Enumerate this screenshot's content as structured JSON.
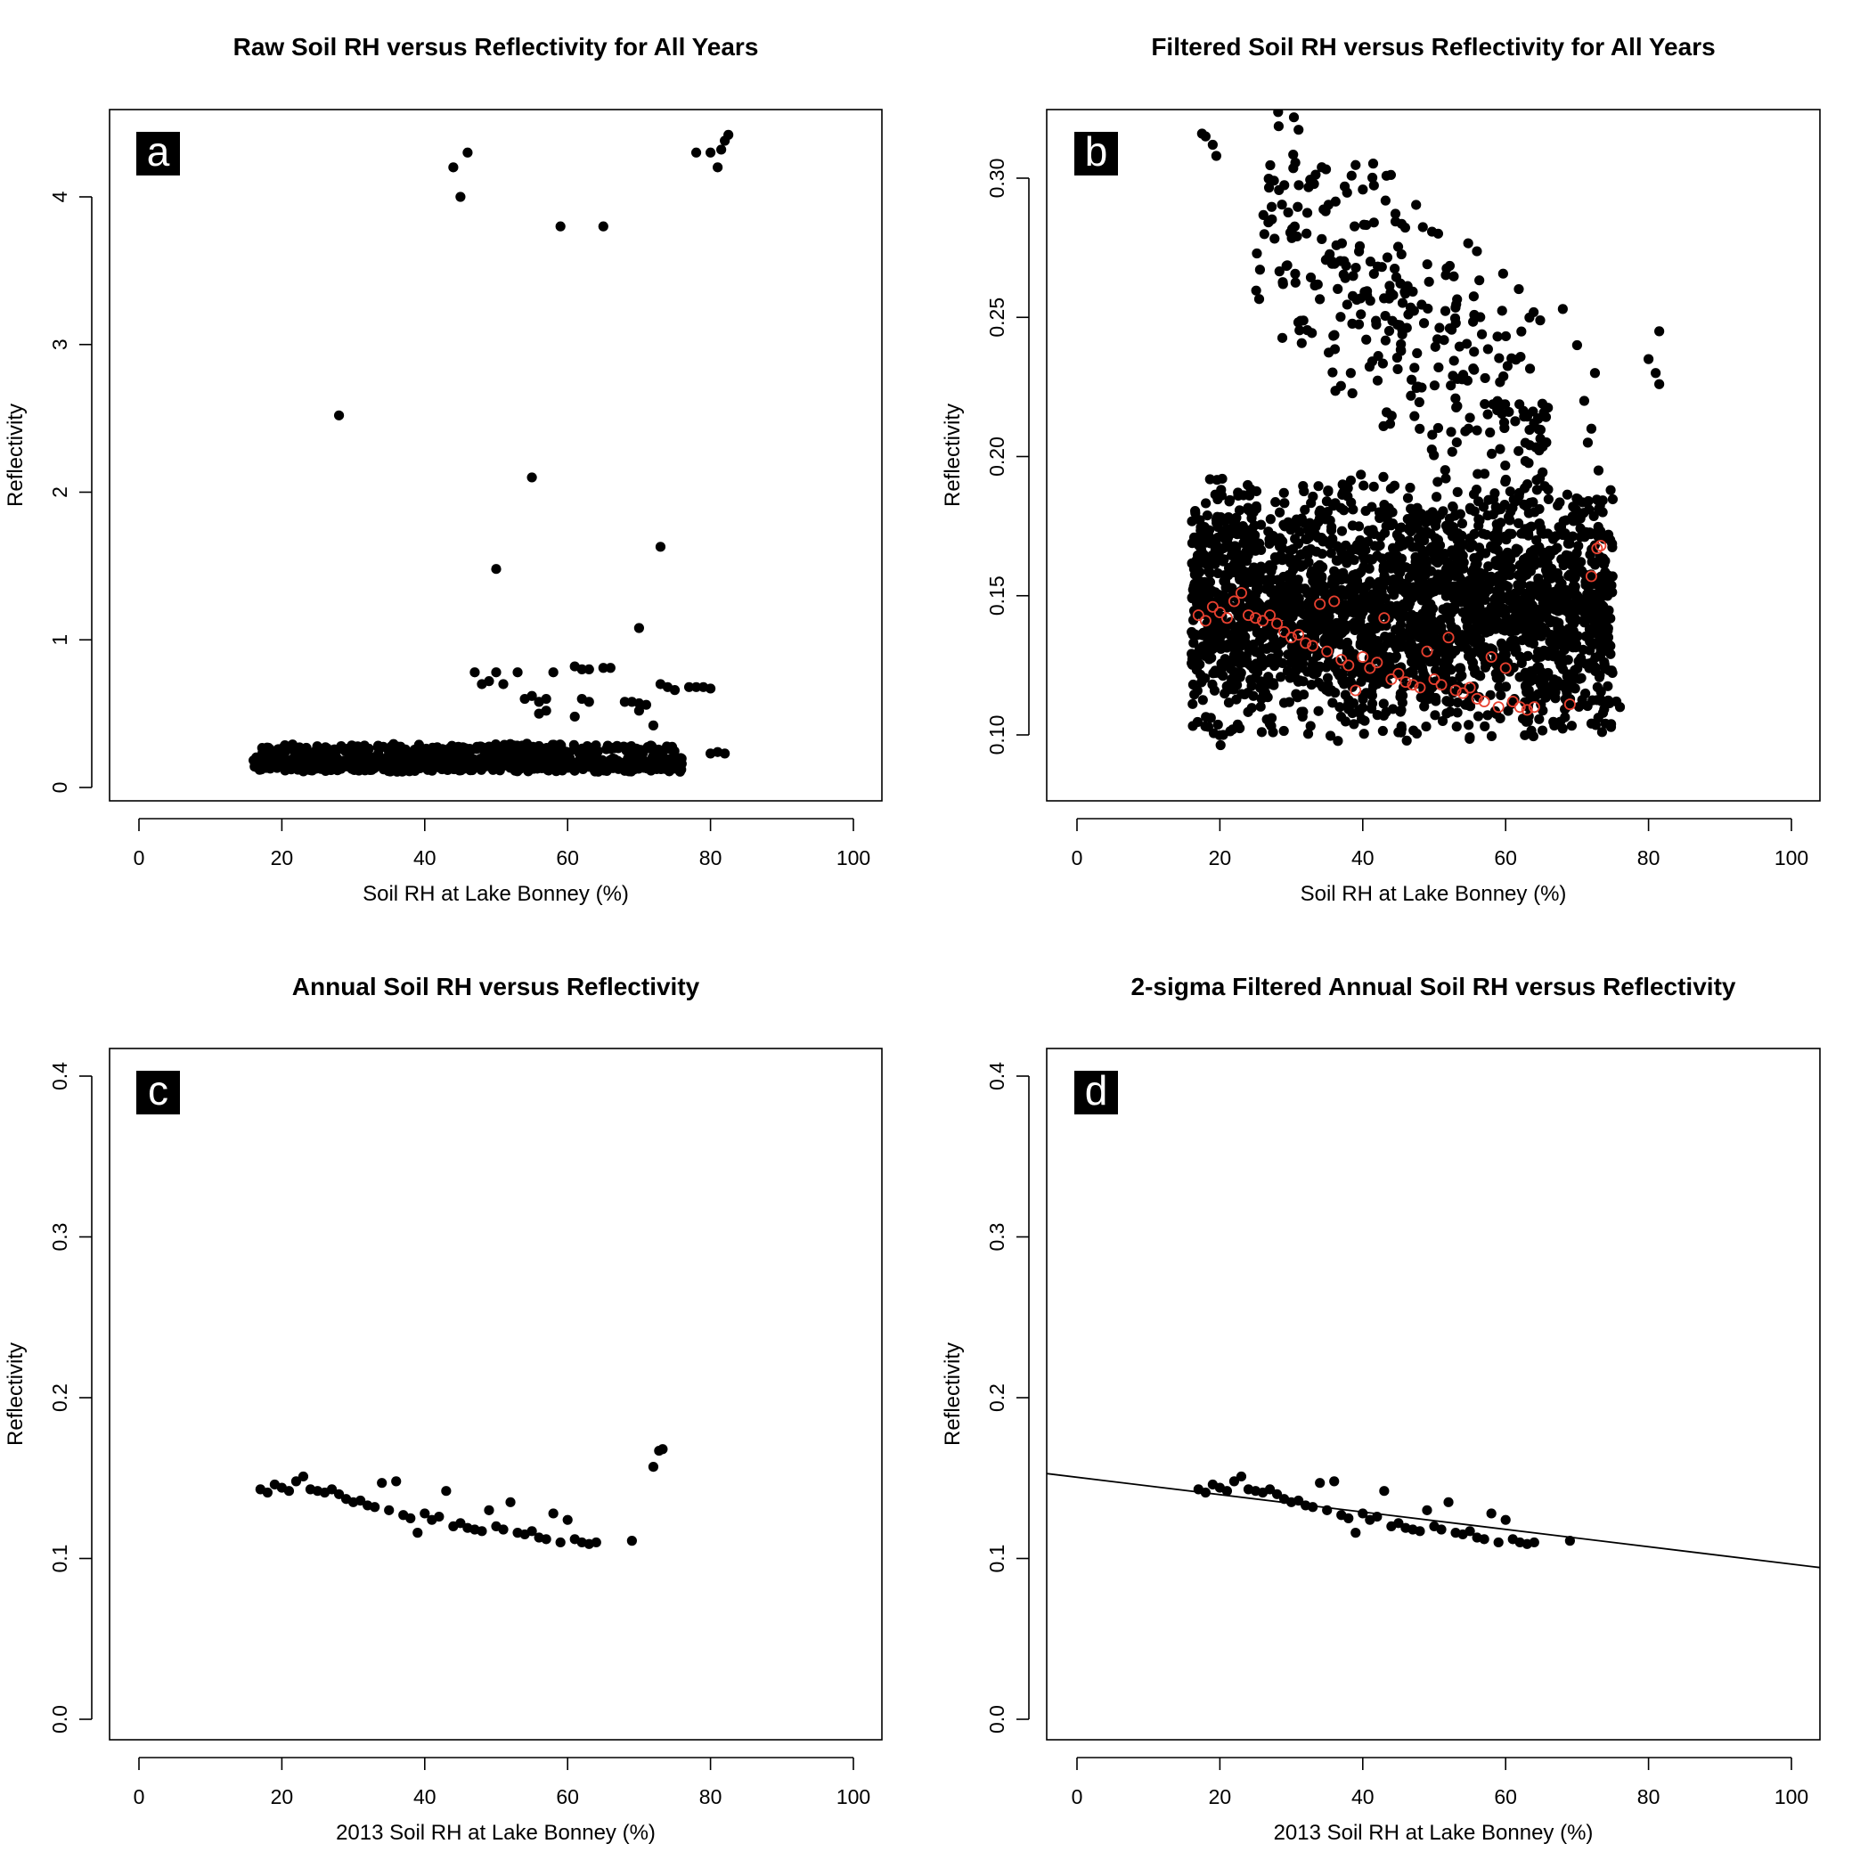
{
  "colors": {
    "points": "#000000",
    "highlight": "#e8402f",
    "frame": "#000000",
    "letter_bg": "#000000",
    "letter_fg": "#ffffff"
  },
  "chart_data": [
    {
      "panel": "a",
      "type": "scatter",
      "title": "Raw Soil RH versus Reflectivity for All Years",
      "xlabel": "Soil RH at Lake Bonney (%)",
      "ylabel": "Reflectivity",
      "xlim": [
        0,
        100
      ],
      "ylim": [
        0,
        4.4
      ],
      "xticks": [
        "0",
        "20",
        "40",
        "60",
        "80",
        "100"
      ],
      "yticks": [
        "0",
        "1",
        "2",
        "3",
        "4"
      ],
      "grid": false,
      "cloud": [
        {
          "x": [
            16,
            76
          ],
          "y": [
            0.1,
            0.22
          ],
          "n": 900
        },
        {
          "x": [
            17,
            75
          ],
          "y": [
            0.22,
            0.3
          ],
          "n": 250
        }
      ],
      "points": [
        [
          28,
          2.52
        ],
        [
          44,
          4.2
        ],
        [
          45,
          4.0
        ],
        [
          46,
          4.3
        ],
        [
          55,
          2.1
        ],
        [
          50,
          1.48
        ],
        [
          59,
          3.8
        ],
        [
          65,
          3.8
        ],
        [
          73,
          1.63
        ],
        [
          70,
          1.08
        ],
        [
          72,
          0.42
        ],
        [
          47,
          0.78
        ],
        [
          48,
          0.7
        ],
        [
          49,
          0.72
        ],
        [
          50,
          0.78
        ],
        [
          51,
          0.7
        ],
        [
          53,
          0.78
        ],
        [
          54,
          0.6
        ],
        [
          55,
          0.62
        ],
        [
          56,
          0.58
        ],
        [
          57,
          0.6
        ],
        [
          58,
          0.78
        ],
        [
          57,
          0.52
        ],
        [
          56,
          0.5
        ],
        [
          61,
          0.48
        ],
        [
          62,
          0.6
        ],
        [
          63,
          0.58
        ],
        [
          61,
          0.82
        ],
        [
          62,
          0.8
        ],
        [
          63,
          0.8
        ],
        [
          65,
          0.81
        ],
        [
          66,
          0.81
        ],
        [
          68,
          0.58
        ],
        [
          69,
          0.58
        ],
        [
          70,
          0.57
        ],
        [
          71,
          0.56
        ],
        [
          70,
          0.52
        ],
        [
          73,
          0.7
        ],
        [
          74,
          0.68
        ],
        [
          75,
          0.66
        ],
        [
          77,
          0.68
        ],
        [
          78,
          0.68
        ],
        [
          79,
          0.68
        ],
        [
          80,
          0.67
        ],
        [
          80,
          0.23
        ],
        [
          81,
          0.24
        ],
        [
          82,
          0.23
        ],
        [
          78,
          4.3
        ],
        [
          80,
          4.3
        ],
        [
          81,
          4.2
        ],
        [
          81.5,
          4.32
        ],
        [
          82,
          4.38
        ],
        [
          82.5,
          4.42
        ]
      ]
    },
    {
      "panel": "b",
      "type": "scatter",
      "title": "Filtered Soil RH versus Reflectivity for All Years",
      "xlabel": "Soil RH at Lake Bonney (%)",
      "ylabel": "Reflectivity",
      "xlim": [
        0,
        100
      ],
      "ylim": [
        0.085,
        0.32
      ],
      "xticks": [
        "0",
        "20",
        "40",
        "60",
        "80",
        "100"
      ],
      "yticks": [
        "0.10",
        "0.15",
        "0.20",
        "0.25",
        "0.30"
      ],
      "grid": false,
      "cloud": [
        {
          "x": [
            16,
            75
          ],
          "y": [
            0.095,
            0.195
          ],
          "n": 2600
        },
        {
          "x": [
            25,
            66
          ],
          "y": [
            0.195,
            0.3
          ],
          "n": 320,
          "trend": -0.0021
        }
      ],
      "points": [
        [
          18,
          0.315
        ],
        [
          19,
          0.312
        ],
        [
          19.5,
          0.308
        ],
        [
          17.5,
          0.316
        ],
        [
          68,
          0.253
        ],
        [
          70,
          0.24
        ],
        [
          71,
          0.22
        ],
        [
          72,
          0.21
        ],
        [
          73,
          0.195
        ],
        [
          71.5,
          0.205
        ],
        [
          72.5,
          0.23
        ],
        [
          80,
          0.235
        ],
        [
          81,
          0.23
        ],
        [
          81.5,
          0.245
        ],
        [
          81.5,
          0.226
        ],
        [
          76,
          0.11
        ],
        [
          75.5,
          0.112
        ],
        [
          74,
          0.14
        ],
        [
          73.5,
          0.143
        ]
      ],
      "highlighted": [
        [
          17,
          0.143
        ],
        [
          18,
          0.141
        ],
        [
          19,
          0.146
        ],
        [
          20,
          0.144
        ],
        [
          21,
          0.142
        ],
        [
          22,
          0.148
        ],
        [
          23,
          0.151
        ],
        [
          24,
          0.143
        ],
        [
          25,
          0.142
        ],
        [
          26,
          0.141
        ],
        [
          27,
          0.143
        ],
        [
          28,
          0.14
        ],
        [
          29,
          0.137
        ],
        [
          30,
          0.135
        ],
        [
          31,
          0.136
        ],
        [
          32,
          0.133
        ],
        [
          33,
          0.132
        ],
        [
          34,
          0.147
        ],
        [
          35,
          0.13
        ],
        [
          36,
          0.148
        ],
        [
          37,
          0.127
        ],
        [
          38,
          0.125
        ],
        [
          39,
          0.116
        ],
        [
          40,
          0.128
        ],
        [
          41,
          0.124
        ],
        [
          42,
          0.126
        ],
        [
          43,
          0.142
        ],
        [
          44,
          0.12
        ],
        [
          45,
          0.122
        ],
        [
          46,
          0.119
        ],
        [
          47,
          0.118
        ],
        [
          48,
          0.117
        ],
        [
          49,
          0.13
        ],
        [
          50,
          0.12
        ],
        [
          51,
          0.118
        ],
        [
          52,
          0.135
        ],
        [
          53,
          0.116
        ],
        [
          54,
          0.115
        ],
        [
          55,
          0.117
        ],
        [
          56,
          0.113
        ],
        [
          57,
          0.112
        ],
        [
          58,
          0.128
        ],
        [
          59,
          0.11
        ],
        [
          60,
          0.124
        ],
        [
          61,
          0.112
        ],
        [
          62,
          0.11
        ],
        [
          63,
          0.109
        ],
        [
          64,
          0.11
        ],
        [
          69,
          0.111
        ],
        [
          72,
          0.157
        ],
        [
          72.8,
          0.167
        ],
        [
          73.3,
          0.168
        ]
      ]
    },
    {
      "panel": "c",
      "type": "scatter",
      "title": "Annual Soil RH versus Reflectivity",
      "xlabel": "2013 Soil RH at Lake Bonney (%)",
      "ylabel": "Reflectivity",
      "xlim": [
        0,
        100
      ],
      "ylim": [
        0,
        0.4
      ],
      "xticks": [
        "0",
        "20",
        "40",
        "60",
        "80",
        "100"
      ],
      "yticks": [
        "0.0",
        "0.1",
        "0.2",
        "0.3",
        "0.4"
      ],
      "grid": false,
      "points": [
        [
          17,
          0.143
        ],
        [
          18,
          0.141
        ],
        [
          19,
          0.146
        ],
        [
          20,
          0.144
        ],
        [
          21,
          0.142
        ],
        [
          22,
          0.148
        ],
        [
          23,
          0.151
        ],
        [
          24,
          0.143
        ],
        [
          25,
          0.142
        ],
        [
          26,
          0.141
        ],
        [
          27,
          0.143
        ],
        [
          28,
          0.14
        ],
        [
          29,
          0.137
        ],
        [
          30,
          0.135
        ],
        [
          31,
          0.136
        ],
        [
          32,
          0.133
        ],
        [
          33,
          0.132
        ],
        [
          34,
          0.147
        ],
        [
          35,
          0.13
        ],
        [
          36,
          0.148
        ],
        [
          37,
          0.127
        ],
        [
          38,
          0.125
        ],
        [
          39,
          0.116
        ],
        [
          40,
          0.128
        ],
        [
          41,
          0.124
        ],
        [
          42,
          0.126
        ],
        [
          43,
          0.142
        ],
        [
          44,
          0.12
        ],
        [
          45,
          0.122
        ],
        [
          46,
          0.119
        ],
        [
          47,
          0.118
        ],
        [
          48,
          0.117
        ],
        [
          49,
          0.13
        ],
        [
          50,
          0.12
        ],
        [
          51,
          0.118
        ],
        [
          52,
          0.135
        ],
        [
          53,
          0.116
        ],
        [
          54,
          0.115
        ],
        [
          55,
          0.117
        ],
        [
          56,
          0.113
        ],
        [
          57,
          0.112
        ],
        [
          58,
          0.128
        ],
        [
          59,
          0.11
        ],
        [
          60,
          0.124
        ],
        [
          61,
          0.112
        ],
        [
          62,
          0.11
        ],
        [
          63,
          0.109
        ],
        [
          64,
          0.11
        ],
        [
          69,
          0.111
        ],
        [
          72,
          0.157
        ],
        [
          72.8,
          0.167
        ],
        [
          73.3,
          0.168
        ]
      ]
    },
    {
      "panel": "d",
      "type": "scatter",
      "title": "2-sigma Filtered Annual Soil RH versus Reflectivity",
      "xlabel": "2013 Soil RH at Lake Bonney (%)",
      "ylabel": "Reflectivity",
      "xlim": [
        0,
        100
      ],
      "ylim": [
        0,
        0.4
      ],
      "xticks": [
        "0",
        "20",
        "40",
        "60",
        "80",
        "100"
      ],
      "yticks": [
        "0.0",
        "0.1",
        "0.2",
        "0.3",
        "0.4"
      ],
      "grid": false,
      "fit_line": {
        "intercept": 0.1505,
        "slope": -0.00054
      },
      "points": [
        [
          17,
          0.143
        ],
        [
          18,
          0.141
        ],
        [
          19,
          0.146
        ],
        [
          20,
          0.144
        ],
        [
          21,
          0.142
        ],
        [
          22,
          0.148
        ],
        [
          23,
          0.151
        ],
        [
          24,
          0.143
        ],
        [
          25,
          0.142
        ],
        [
          26,
          0.141
        ],
        [
          27,
          0.143
        ],
        [
          28,
          0.14
        ],
        [
          29,
          0.137
        ],
        [
          30,
          0.135
        ],
        [
          31,
          0.136
        ],
        [
          32,
          0.133
        ],
        [
          33,
          0.132
        ],
        [
          34,
          0.147
        ],
        [
          35,
          0.13
        ],
        [
          36,
          0.148
        ],
        [
          37,
          0.127
        ],
        [
          38,
          0.125
        ],
        [
          39,
          0.116
        ],
        [
          40,
          0.128
        ],
        [
          41,
          0.124
        ],
        [
          42,
          0.126
        ],
        [
          43,
          0.142
        ],
        [
          44,
          0.12
        ],
        [
          45,
          0.122
        ],
        [
          46,
          0.119
        ],
        [
          47,
          0.118
        ],
        [
          48,
          0.117
        ],
        [
          49,
          0.13
        ],
        [
          50,
          0.12
        ],
        [
          51,
          0.118
        ],
        [
          52,
          0.135
        ],
        [
          53,
          0.116
        ],
        [
          54,
          0.115
        ],
        [
          55,
          0.117
        ],
        [
          56,
          0.113
        ],
        [
          57,
          0.112
        ],
        [
          58,
          0.128
        ],
        [
          59,
          0.11
        ],
        [
          60,
          0.124
        ],
        [
          61,
          0.112
        ],
        [
          62,
          0.11
        ],
        [
          63,
          0.109
        ],
        [
          64,
          0.11
        ],
        [
          69,
          0.111
        ]
      ]
    }
  ]
}
